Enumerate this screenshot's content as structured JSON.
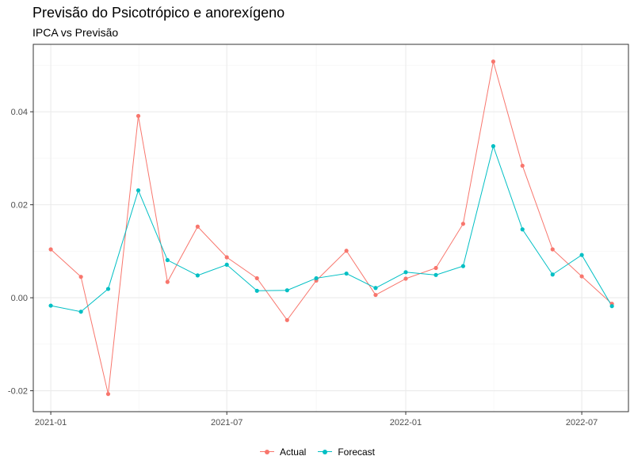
{
  "chart_data": {
    "type": "line",
    "title": "Previsão do Psicotrópico e anorexígeno",
    "subtitle": "IPCA vs Previsão",
    "xlabel": "",
    "ylabel": "",
    "x": [
      "2021-01-01",
      "2021-02-01",
      "2021-03-01",
      "2021-04-01",
      "2021-05-01",
      "2021-06-01",
      "2021-07-01",
      "2021-08-01",
      "2021-09-01",
      "2021-10-01",
      "2021-11-01",
      "2021-12-01",
      "2022-01-01",
      "2022-02-01",
      "2022-03-01",
      "2022-04-01",
      "2022-05-01",
      "2022-06-01",
      "2022-07-01",
      "2022-08-01"
    ],
    "series": [
      {
        "name": "Actual",
        "color": "#F8766D",
        "values": [
          0.0104,
          0.0045,
          -0.0207,
          0.0391,
          0.0034,
          0.0153,
          0.0087,
          0.0042,
          -0.0048,
          0.0037,
          0.0101,
          0.0006,
          0.0041,
          0.0064,
          0.0159,
          0.0508,
          0.0284,
          0.0104,
          0.0046,
          -0.0013
        ]
      },
      {
        "name": "Forecast",
        "color": "#00BFC4",
        "values": [
          -0.0017,
          -0.003,
          0.0019,
          0.0231,
          0.0081,
          0.0048,
          0.0071,
          0.0015,
          0.0016,
          0.0042,
          0.0052,
          0.0021,
          0.0055,
          0.0049,
          0.0068,
          0.0326,
          0.0147,
          0.005,
          0.0092,
          -0.0018
        ]
      }
    ],
    "xticks": [
      {
        "date": "2021-01-01",
        "label": "2021-01"
      },
      {
        "date": "2021-07-01",
        "label": "2021-07"
      },
      {
        "date": "2022-01-01",
        "label": "2022-01"
      },
      {
        "date": "2022-07-01",
        "label": "2022-07"
      }
    ],
    "yticks": [
      {
        "value": -0.02,
        "label": "-0.02"
      },
      {
        "value": 0.0,
        "label": "0.00"
      },
      {
        "value": 0.02,
        "label": "0.02"
      },
      {
        "value": 0.04,
        "label": "0.04"
      }
    ],
    "xlim": [
      "2020-12-14",
      "2022-08-18"
    ],
    "ylim": [
      -0.0245,
      0.0545
    ],
    "grid": true,
    "legend_position": "bottom"
  }
}
